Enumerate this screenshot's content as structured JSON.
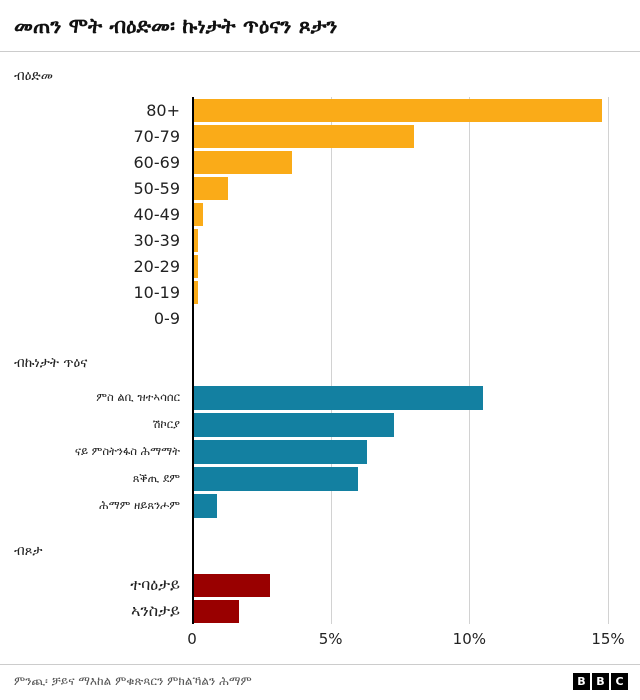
{
  "title": "መጠን ሞት ብዕድመ፡ ኩነታት ጥዕናን ጾታን",
  "source": "ምንጪ፡ ቻይና ማእከል ምቁጽጻርን ምክልኻልን ሕማም",
  "logo_letters": [
    "B",
    "B",
    "C"
  ],
  "axis": {
    "max": 15,
    "ticks": [
      "0",
      "5%",
      "10%",
      "15%"
    ]
  },
  "colors": {
    "age": "#FAAB18",
    "condition": "#1380A1",
    "sex": "#990000",
    "axis_line": "#000000",
    "gridline": "#d2d2d2"
  },
  "chart_data": [
    {
      "type": "bar",
      "orientation": "horizontal",
      "title": "ብዕድመ",
      "color": "#FAAB18",
      "xlim": [
        0,
        15
      ],
      "unit": "%",
      "grid": true,
      "categories": [
        "80+",
        "70-79",
        "60-69",
        "50-59",
        "40-49",
        "30-39",
        "20-29",
        "10-19",
        "0-9"
      ],
      "values": [
        14.8,
        8.0,
        3.6,
        1.3,
        0.4,
        0.2,
        0.2,
        0.2,
        0
      ]
    },
    {
      "type": "bar",
      "orientation": "horizontal",
      "title": "ብኩነታት ጥዕና",
      "color": "#1380A1",
      "xlim": [
        0,
        15
      ],
      "unit": "%",
      "grid": true,
      "categories": [
        "ምስ ልቢ ዝተኣሳሰር",
        "ሽኮርያ",
        "ናይ ምስትንፋስ ሕማማት",
        "ጸቕጢ ደም",
        "ሕማም ዘይጸንሖም"
      ],
      "values": [
        10.5,
        7.3,
        6.3,
        6.0,
        0.9
      ]
    },
    {
      "type": "bar",
      "orientation": "horizontal",
      "title": "ብጾታ",
      "color": "#990000",
      "xlim": [
        0,
        15
      ],
      "unit": "%",
      "grid": true,
      "categories": [
        "ተባዕታይ",
        "ኣንስታይ"
      ],
      "values": [
        2.8,
        1.7
      ]
    }
  ]
}
